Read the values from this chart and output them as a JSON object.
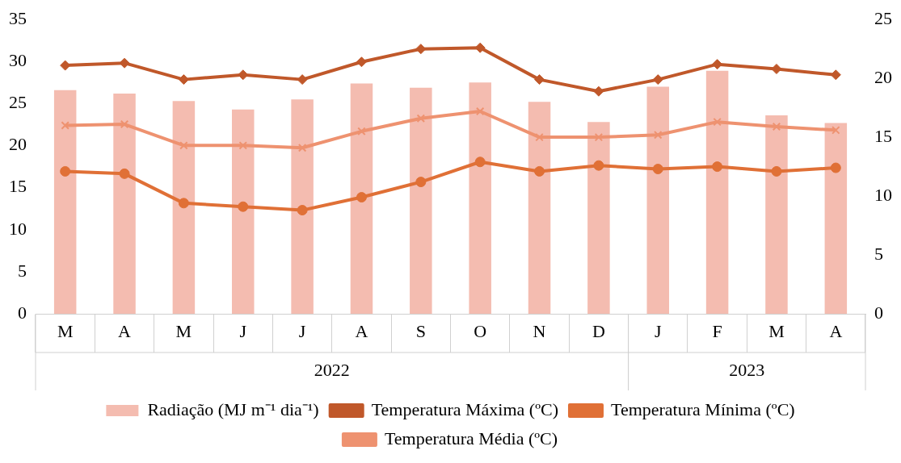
{
  "chart_data": {
    "type": "bar",
    "categories": [
      "M",
      "A",
      "M",
      "J",
      "J",
      "A",
      "S",
      "O",
      "N",
      "D",
      "J",
      "F",
      "M",
      "A"
    ],
    "series": [
      {
        "name": "Radiação (MJ m⁻¹ dia⁻¹)",
        "color": "#f4bcb0",
        "values": [
          26.6,
          26.2,
          25.3,
          24.3,
          25.5,
          27.4,
          26.9,
          27.5,
          25.2,
          22.8,
          27.0,
          28.9,
          23.6,
          22.7
        ]
      },
      {
        "name": "Temperatura Máxima (ºC)",
        "type": "line",
        "axis": "y2",
        "marker": "diamond",
        "color": "#c0582a",
        "values": [
          21.1,
          21.3,
          19.9,
          20.3,
          19.9,
          21.4,
          22.5,
          22.6,
          19.9,
          18.9,
          19.9,
          21.2,
          20.8,
          20.3
        ]
      },
      {
        "name": "Temperatura Mínima (ºC)",
        "type": "line",
        "axis": "y2",
        "marker": "circle",
        "color": "#e07036",
        "values": [
          12.1,
          11.9,
          9.4,
          9.1,
          8.8,
          9.9,
          11.2,
          12.9,
          12.1,
          12.6,
          12.3,
          12.5,
          12.1,
          12.4
        ]
      },
      {
        "name": "Temperatura Média (ºC)",
        "type": "line",
        "axis": "y2",
        "marker": "cross",
        "color": "#ee9270",
        "values": [
          16.0,
          16.1,
          14.3,
          14.3,
          14.1,
          15.5,
          16.6,
          17.2,
          15.0,
          15.0,
          15.2,
          16.3,
          15.9,
          15.6
        ]
      }
    ],
    "ylim": [
      0,
      35
    ],
    "yticks": [
      0,
      5,
      10,
      15,
      20,
      25,
      30,
      35
    ],
    "y2lim": [
      0,
      25
    ],
    "y2ticks": [
      0,
      5,
      10,
      15,
      20,
      25
    ],
    "annotations": [
      "2022",
      "2023"
    ],
    "grid": false,
    "legend": "bottom"
  }
}
